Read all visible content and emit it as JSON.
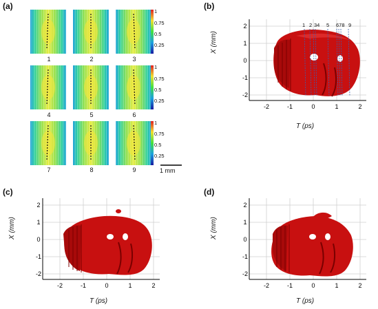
{
  "panel_labels": {
    "a": "(a)",
    "b": "(b)",
    "c": "(c)",
    "d": "(d)"
  },
  "panel_a": {
    "tile_labels": [
      "1",
      "2",
      "3",
      "4",
      "5",
      "6",
      "7",
      "8",
      "9"
    ],
    "colorbar_ticks": [
      "1",
      "0.75",
      "0.5",
      "0.25"
    ],
    "scale_bar_label": "1 mm"
  },
  "panel_b": {
    "y_axis_label": "X (mm)",
    "x_axis_label": "T (ps)",
    "x_ticks": [
      "-2",
      "-1",
      "0",
      "1",
      "2"
    ],
    "y_ticks": [
      "2",
      "1",
      "0",
      "-1",
      "-2"
    ],
    "marker_labels": [
      "1",
      "2",
      "34",
      "5",
      "678",
      "9"
    ]
  },
  "panel_c": {
    "y_axis_label": "X (mm)",
    "x_axis_label": "T (ps)",
    "x_ticks": [
      "-2",
      "-1",
      "0",
      "1",
      "2"
    ],
    "y_ticks": [
      "2",
      "1",
      "0",
      "-1",
      "-2"
    ]
  },
  "panel_d": {
    "y_axis_label": "X (mm)",
    "x_axis_label": "T (ps)",
    "x_ticks": [
      "-2",
      "-1",
      "0",
      "1",
      "2"
    ],
    "y_ticks": [
      "2",
      "1",
      "0",
      "-1",
      "-2"
    ]
  },
  "colors": {
    "surface": "#cc1111",
    "surface_dark": "#7a0000",
    "marker_line": "#3a5fb0"
  }
}
